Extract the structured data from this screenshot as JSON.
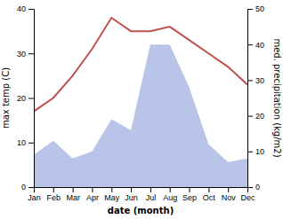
{
  "chart_data": {
    "type": "line",
    "categories": [
      "Jan",
      "Feb",
      "Mar",
      "Apr",
      "May",
      "Jun",
      "Jul",
      "Aug",
      "Sep",
      "Oct",
      "Nov",
      "Dec"
    ],
    "series": [
      {
        "type": "area",
        "axis": "y2",
        "color": "#b8c4e8",
        "values": [
          9,
          13,
          8,
          10,
          19,
          16,
          40,
          40,
          28,
          12,
          7,
          8
        ]
      },
      {
        "type": "line",
        "color": "#c0504d",
        "values": [
          17,
          20,
          25,
          31,
          38,
          35,
          35,
          36,
          33,
          30,
          27,
          23
        ]
      }
    ],
    "xlabel": "date (month)",
    "ylabel": "max temp (C)",
    "y2label": "med. precipitation (kg/m2)",
    "ylim": [
      0,
      40
    ],
    "yticks": [
      0,
      10,
      20,
      30,
      40
    ],
    "y2lim": [
      0,
      50
    ],
    "y2ticks": [
      0,
      10,
      20,
      30,
      40,
      50
    ]
  }
}
